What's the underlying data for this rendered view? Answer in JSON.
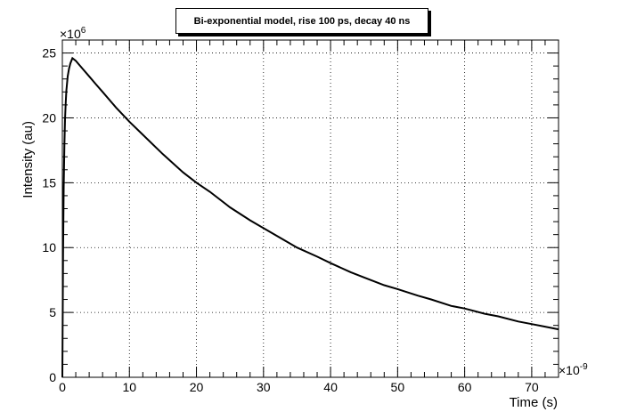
{
  "chart_data": {
    "type": "line",
    "title": "Bi-exponential model, rise 100 ps, decay 40 ns",
    "xlabel": "Time (s)",
    "ylabel": "Intensity (au)",
    "x_multiplier": "×10",
    "x_exponent": "-9",
    "y_multiplier": "×10",
    "y_exponent": "6",
    "xlim": [
      0,
      74
    ],
    "ylim": [
      0,
      26
    ],
    "x_ticks": [
      0,
      10,
      20,
      30,
      40,
      50,
      60,
      70
    ],
    "x_tick_labels": [
      "0",
      "10",
      "20",
      "30",
      "40",
      "50",
      "60",
      "70"
    ],
    "y_ticks": [
      0,
      5,
      10,
      15,
      20,
      25
    ],
    "y_tick_labels": [
      "0",
      "5",
      "10",
      "15",
      "20",
      "25"
    ],
    "grid": true,
    "line_color": "#000000",
    "series": [
      {
        "x": [
          0,
          0.1,
          0.2,
          0.3,
          0.4,
          0.5,
          0.6,
          0.8,
          1.0,
          1.2,
          1.5,
          2,
          3,
          4,
          5,
          6,
          8,
          10,
          12,
          15,
          18,
          20,
          22,
          25,
          28,
          30,
          33,
          35,
          38,
          40,
          43,
          45,
          48,
          50,
          53,
          55,
          58,
          60,
          63,
          65,
          68,
          70,
          72,
          74
        ],
        "values": [
          0,
          9.5,
          14.6,
          17.9,
          19.9,
          21.2,
          22.1,
          23.2,
          23.8,
          24.2,
          24.6,
          24.4,
          23.8,
          23.2,
          22.6,
          22.0,
          20.8,
          19.7,
          18.7,
          17.2,
          15.8,
          15.0,
          14.3,
          13.1,
          12.1,
          11.5,
          10.6,
          10.0,
          9.3,
          8.8,
          8.1,
          7.7,
          7.1,
          6.8,
          6.3,
          6.0,
          5.5,
          5.3,
          4.9,
          4.7,
          4.3,
          4.1,
          3.9,
          3.7
        ]
      }
    ]
  }
}
